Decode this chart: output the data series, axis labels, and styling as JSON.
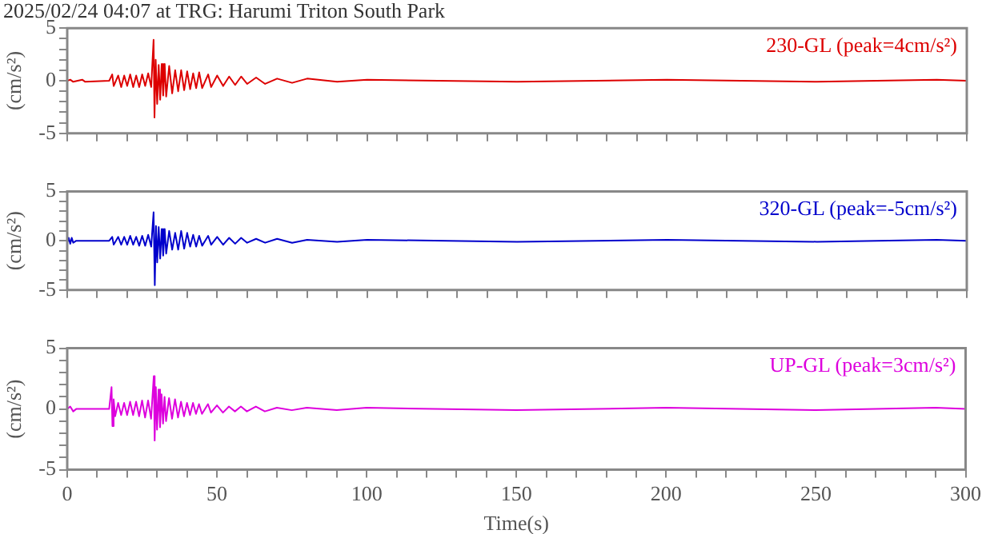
{
  "chart_data": [
    {
      "type": "line",
      "title": "2025/02/24 04:07 at TRG: Harumi Triton South Park",
      "ylabel": "(cm/s²)",
      "marker": "none",
      "tick_labels": "y",
      "x": [
        0,
        1,
        2,
        5,
        6,
        14,
        15,
        15.5,
        17,
        18,
        19,
        20,
        21,
        22,
        23,
        24,
        25,
        26,
        27,
        28,
        28.8,
        29.1,
        29.5,
        30,
        30.5,
        31,
        31.5,
        32,
        32.5,
        33,
        34,
        35,
        36,
        37,
        38,
        39,
        40,
        41,
        42,
        43,
        44,
        45,
        47,
        48,
        50,
        52,
        54,
        56,
        58,
        60,
        63,
        66,
        70,
        75,
        80,
        90,
        100,
        150,
        200,
        250,
        290,
        300
      ],
      "series": [
        {
          "name": "230-GL (peak=4cm/s²)",
          "color": "#dd0000",
          "values": [
            0,
            0.1,
            -0.1,
            0.1,
            -0.1,
            0,
            0.6,
            -0.5,
            0.5,
            -0.6,
            0.5,
            -0.5,
            0.6,
            -0.6,
            0.5,
            -0.6,
            0.6,
            -0.5,
            0.7,
            -0.6,
            3.9,
            -3.5,
            2.0,
            -2.2,
            1.5,
            -1.8,
            1.6,
            -1.4,
            1.6,
            -1.5,
            1.4,
            -1.2,
            1.0,
            -1.0,
            1.0,
            -0.9,
            0.9,
            -0.8,
            0.7,
            -0.7,
            0.8,
            -0.7,
            0.6,
            -0.6,
            0.5,
            -0.5,
            0.4,
            -0.4,
            0.4,
            -0.3,
            0.3,
            -0.3,
            0.2,
            -0.2,
            0.2,
            -0.1,
            0.1,
            -0.1,
            0.1,
            -0.1,
            0.1,
            0
          ]
        }
      ],
      "xlim": [
        0,
        300
      ],
      "ylim": [
        -5,
        5
      ],
      "xticks": [
        0,
        {
          "value": 10,
          "label": null
        },
        {
          "value": 20,
          "label": null
        },
        {
          "value": 30,
          "label": null
        },
        {
          "value": 40,
          "label": null
        },
        50,
        {
          "value": 60,
          "label": null
        },
        {
          "value": 70,
          "label": null
        },
        {
          "value": 80,
          "label": null
        },
        {
          "value": 90,
          "label": null
        },
        100,
        {
          "value": 110,
          "label": null
        },
        {
          "value": 120,
          "label": null
        },
        {
          "value": 130,
          "label": null
        },
        {
          "value": 140,
          "label": null
        },
        150,
        {
          "value": 160,
          "label": null
        },
        {
          "value": 170,
          "label": null
        },
        {
          "value": 180,
          "label": null
        },
        {
          "value": 190,
          "label": null
        },
        200,
        {
          "value": 210,
          "label": null
        },
        {
          "value": 220,
          "label": null
        },
        {
          "value": 230,
          "label": null
        },
        {
          "value": 240,
          "label": null
        },
        250,
        {
          "value": 260,
          "label": null
        },
        {
          "value": 270,
          "label": null
        },
        {
          "value": 280,
          "label": null
        },
        {
          "value": 290,
          "label": null
        },
        300
      ],
      "yticks": [
        -5,
        {
          "value": -4,
          "label": null
        },
        {
          "value": -3,
          "label": null
        },
        {
          "value": -2,
          "label": null
        },
        {
          "value": -1,
          "label": null
        },
        0,
        {
          "value": 1,
          "label": null
        },
        {
          "value": 2,
          "label": null
        },
        {
          "value": 3,
          "label": null
        },
        {
          "value": 4,
          "label": null
        },
        5
      ]
    },
    {
      "type": "line",
      "ylabel": "(cm/s²)",
      "marker": "none",
      "tick_labels": "y",
      "x": [
        0,
        0.5,
        1,
        1.5,
        2,
        3,
        14,
        15,
        15.5,
        17,
        18,
        19,
        20,
        21,
        22,
        23,
        24,
        25,
        26,
        27,
        28,
        28.8,
        29.2,
        29.6,
        30,
        30.5,
        31,
        31.5,
        32,
        32.5,
        33,
        34,
        35,
        36,
        37,
        38,
        39,
        40,
        41,
        42,
        43,
        44,
        45,
        47,
        48,
        50,
        52,
        54,
        56,
        58,
        60,
        63,
        66,
        70,
        75,
        80,
        90,
        100,
        150,
        200,
        250,
        290,
        300
      ],
      "series": [
        {
          "name": "320-GL (peak=-5cm/s²)",
          "color": "#0000cc",
          "values": [
            0,
            0.3,
            -0.3,
            0.3,
            -0.2,
            0,
            0,
            0.4,
            -0.4,
            0.4,
            -0.4,
            0.4,
            -0.4,
            0.5,
            -0.4,
            0.4,
            -0.5,
            0.5,
            -0.5,
            0.6,
            -0.6,
            2.9,
            -4.5,
            1.5,
            -2.2,
            1.4,
            -1.8,
            1.2,
            -1.5,
            1.2,
            -1.3,
            1.0,
            -0.9,
            0.8,
            -0.9,
            1.0,
            -0.8,
            0.8,
            -0.6,
            0.6,
            -0.6,
            0.5,
            -0.5,
            0.5,
            -0.4,
            0.4,
            -0.4,
            0.3,
            -0.3,
            0.3,
            -0.2,
            0.2,
            -0.2,
            0.2,
            -0.2,
            0.1,
            -0.1,
            0.1,
            -0.1,
            0.1,
            -0.1,
            0.1,
            0
          ]
        }
      ],
      "xlim": [
        0,
        300
      ],
      "ylim": [
        -5,
        5
      ],
      "xticks": [
        0,
        {
          "value": 10,
          "label": null
        },
        {
          "value": 20,
          "label": null
        },
        {
          "value": 30,
          "label": null
        },
        {
          "value": 40,
          "label": null
        },
        50,
        {
          "value": 60,
          "label": null
        },
        {
          "value": 70,
          "label": null
        },
        {
          "value": 80,
          "label": null
        },
        {
          "value": 90,
          "label": null
        },
        100,
        {
          "value": 110,
          "label": null
        },
        {
          "value": 120,
          "label": null
        },
        {
          "value": 130,
          "label": null
        },
        {
          "value": 140,
          "label": null
        },
        150,
        {
          "value": 160,
          "label": null
        },
        {
          "value": 170,
          "label": null
        },
        {
          "value": 180,
          "label": null
        },
        {
          "value": 190,
          "label": null
        },
        200,
        {
          "value": 210,
          "label": null
        },
        {
          "value": 220,
          "label": null
        },
        {
          "value": 230,
          "label": null
        },
        {
          "value": 240,
          "label": null
        },
        250,
        {
          "value": 260,
          "label": null
        },
        {
          "value": 270,
          "label": null
        },
        {
          "value": 280,
          "label": null
        },
        {
          "value": 290,
          "label": null
        },
        300
      ],
      "yticks": [
        -5,
        {
          "value": -4,
          "label": null
        },
        {
          "value": -3,
          "label": null
        },
        {
          "value": -2,
          "label": null
        },
        {
          "value": -1,
          "label": null
        },
        0,
        {
          "value": 1,
          "label": null
        },
        {
          "value": 2,
          "label": null
        },
        {
          "value": 3,
          "label": null
        },
        {
          "value": 4,
          "label": null
        },
        5
      ]
    },
    {
      "type": "line",
      "xlabel": "Time(s)",
      "ylabel": "(cm/s²)",
      "marker": "none",
      "x": [
        0,
        1,
        2,
        3,
        14,
        14.8,
        15.1,
        15.5,
        16,
        17,
        18,
        19,
        20,
        21,
        22,
        23,
        24,
        25,
        26,
        27,
        28,
        28.9,
        29.2,
        29.6,
        30,
        30.5,
        31,
        31.5,
        32,
        32.5,
        33,
        34,
        35,
        36,
        37,
        38,
        39,
        40,
        41,
        42,
        43,
        44,
        45,
        47,
        48,
        50,
        52,
        54,
        56,
        58,
        60,
        63,
        66,
        70,
        75,
        80,
        90,
        100,
        150,
        200,
        250,
        290,
        300
      ],
      "series": [
        {
          "name": "UP-GL (peak=3cm/s²)",
          "color": "#dd00dd",
          "values": [
            0,
            0.2,
            -0.2,
            0,
            0,
            1.8,
            -1.4,
            0.8,
            -0.6,
            0.5,
            -0.5,
            0.5,
            -0.5,
            0.6,
            -0.5,
            0.6,
            -0.6,
            0.7,
            -0.7,
            0.7,
            -0.8,
            2.7,
            -2.6,
            1.8,
            -1.7,
            1.6,
            -1.5,
            1.2,
            -1.2,
            1.0,
            -1.0,
            0.9,
            -0.8,
            0.8,
            -0.7,
            0.6,
            -0.6,
            0.5,
            -0.5,
            0.5,
            -0.4,
            0.4,
            -0.4,
            0.4,
            -0.3,
            0.3,
            -0.3,
            0.2,
            -0.2,
            0.2,
            -0.2,
            0.2,
            -0.2,
            0.1,
            -0.1,
            0.1,
            -0.1,
            0.1,
            -0.1,
            0.1,
            -0.1,
            0.1,
            0
          ]
        }
      ],
      "xlim": [
        0,
        300
      ],
      "ylim": [
        -5,
        5
      ],
      "xticks": [
        0,
        {
          "value": 10,
          "label": null
        },
        {
          "value": 20,
          "label": null
        },
        {
          "value": 30,
          "label": null
        },
        {
          "value": 40,
          "label": null
        },
        50,
        {
          "value": 60,
          "label": null
        },
        {
          "value": 70,
          "label": null
        },
        {
          "value": 80,
          "label": null
        },
        {
          "value": 90,
          "label": null
        },
        100,
        {
          "value": 110,
          "label": null
        },
        {
          "value": 120,
          "label": null
        },
        {
          "value": 130,
          "label": null
        },
        {
          "value": 140,
          "label": null
        },
        150,
        {
          "value": 160,
          "label": null
        },
        {
          "value": 170,
          "label": null
        },
        {
          "value": 180,
          "label": null
        },
        {
          "value": 190,
          "label": null
        },
        200,
        {
          "value": 210,
          "label": null
        },
        {
          "value": 220,
          "label": null
        },
        {
          "value": 230,
          "label": null
        },
        {
          "value": 240,
          "label": null
        },
        250,
        {
          "value": 260,
          "label": null
        },
        {
          "value": 270,
          "label": null
        },
        {
          "value": 280,
          "label": null
        },
        {
          "value": 290,
          "label": null
        },
        300
      ],
      "yticks": [
        -5,
        {
          "value": -4,
          "label": null
        },
        {
          "value": -3,
          "label": null
        },
        {
          "value": -2,
          "label": null
        },
        {
          "value": -1,
          "label": null
        },
        0,
        {
          "value": 1,
          "label": null
        },
        {
          "value": 2,
          "label": null
        },
        {
          "value": 3,
          "label": null
        },
        {
          "value": 4,
          "label": null
        },
        5
      ]
    }
  ]
}
